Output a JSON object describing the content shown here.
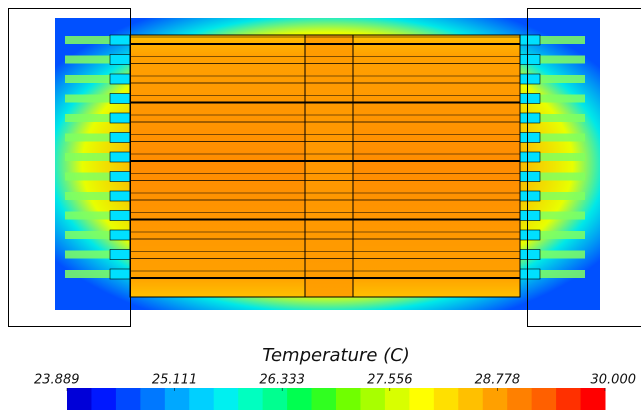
{
  "chart_data": {
    "type": "colorbar",
    "title": "Temperature (C)",
    "clim": [
      23.889,
      30
    ],
    "ticks": [
      23.889,
      25.111,
      26.333,
      27.556,
      28.778,
      {
        "value": 30,
        "label": "30.000"
      }
    ],
    "colormap": [
      "#0000d8",
      "#0018ff",
      "#0048ff",
      "#0078ff",
      "#00a8ff",
      "#00d0ff",
      "#00f0f0",
      "#00ffc0",
      "#00ff90",
      "#00ff50",
      "#30ff20",
      "#70ff00",
      "#a8ff00",
      "#d8ff00",
      "#ffff00",
      "#ffe000",
      "#ffc000",
      "#ffa000",
      "#ff8000",
      "#ff6000",
      "#ff3000",
      "#ff0000"
    ]
  }
}
